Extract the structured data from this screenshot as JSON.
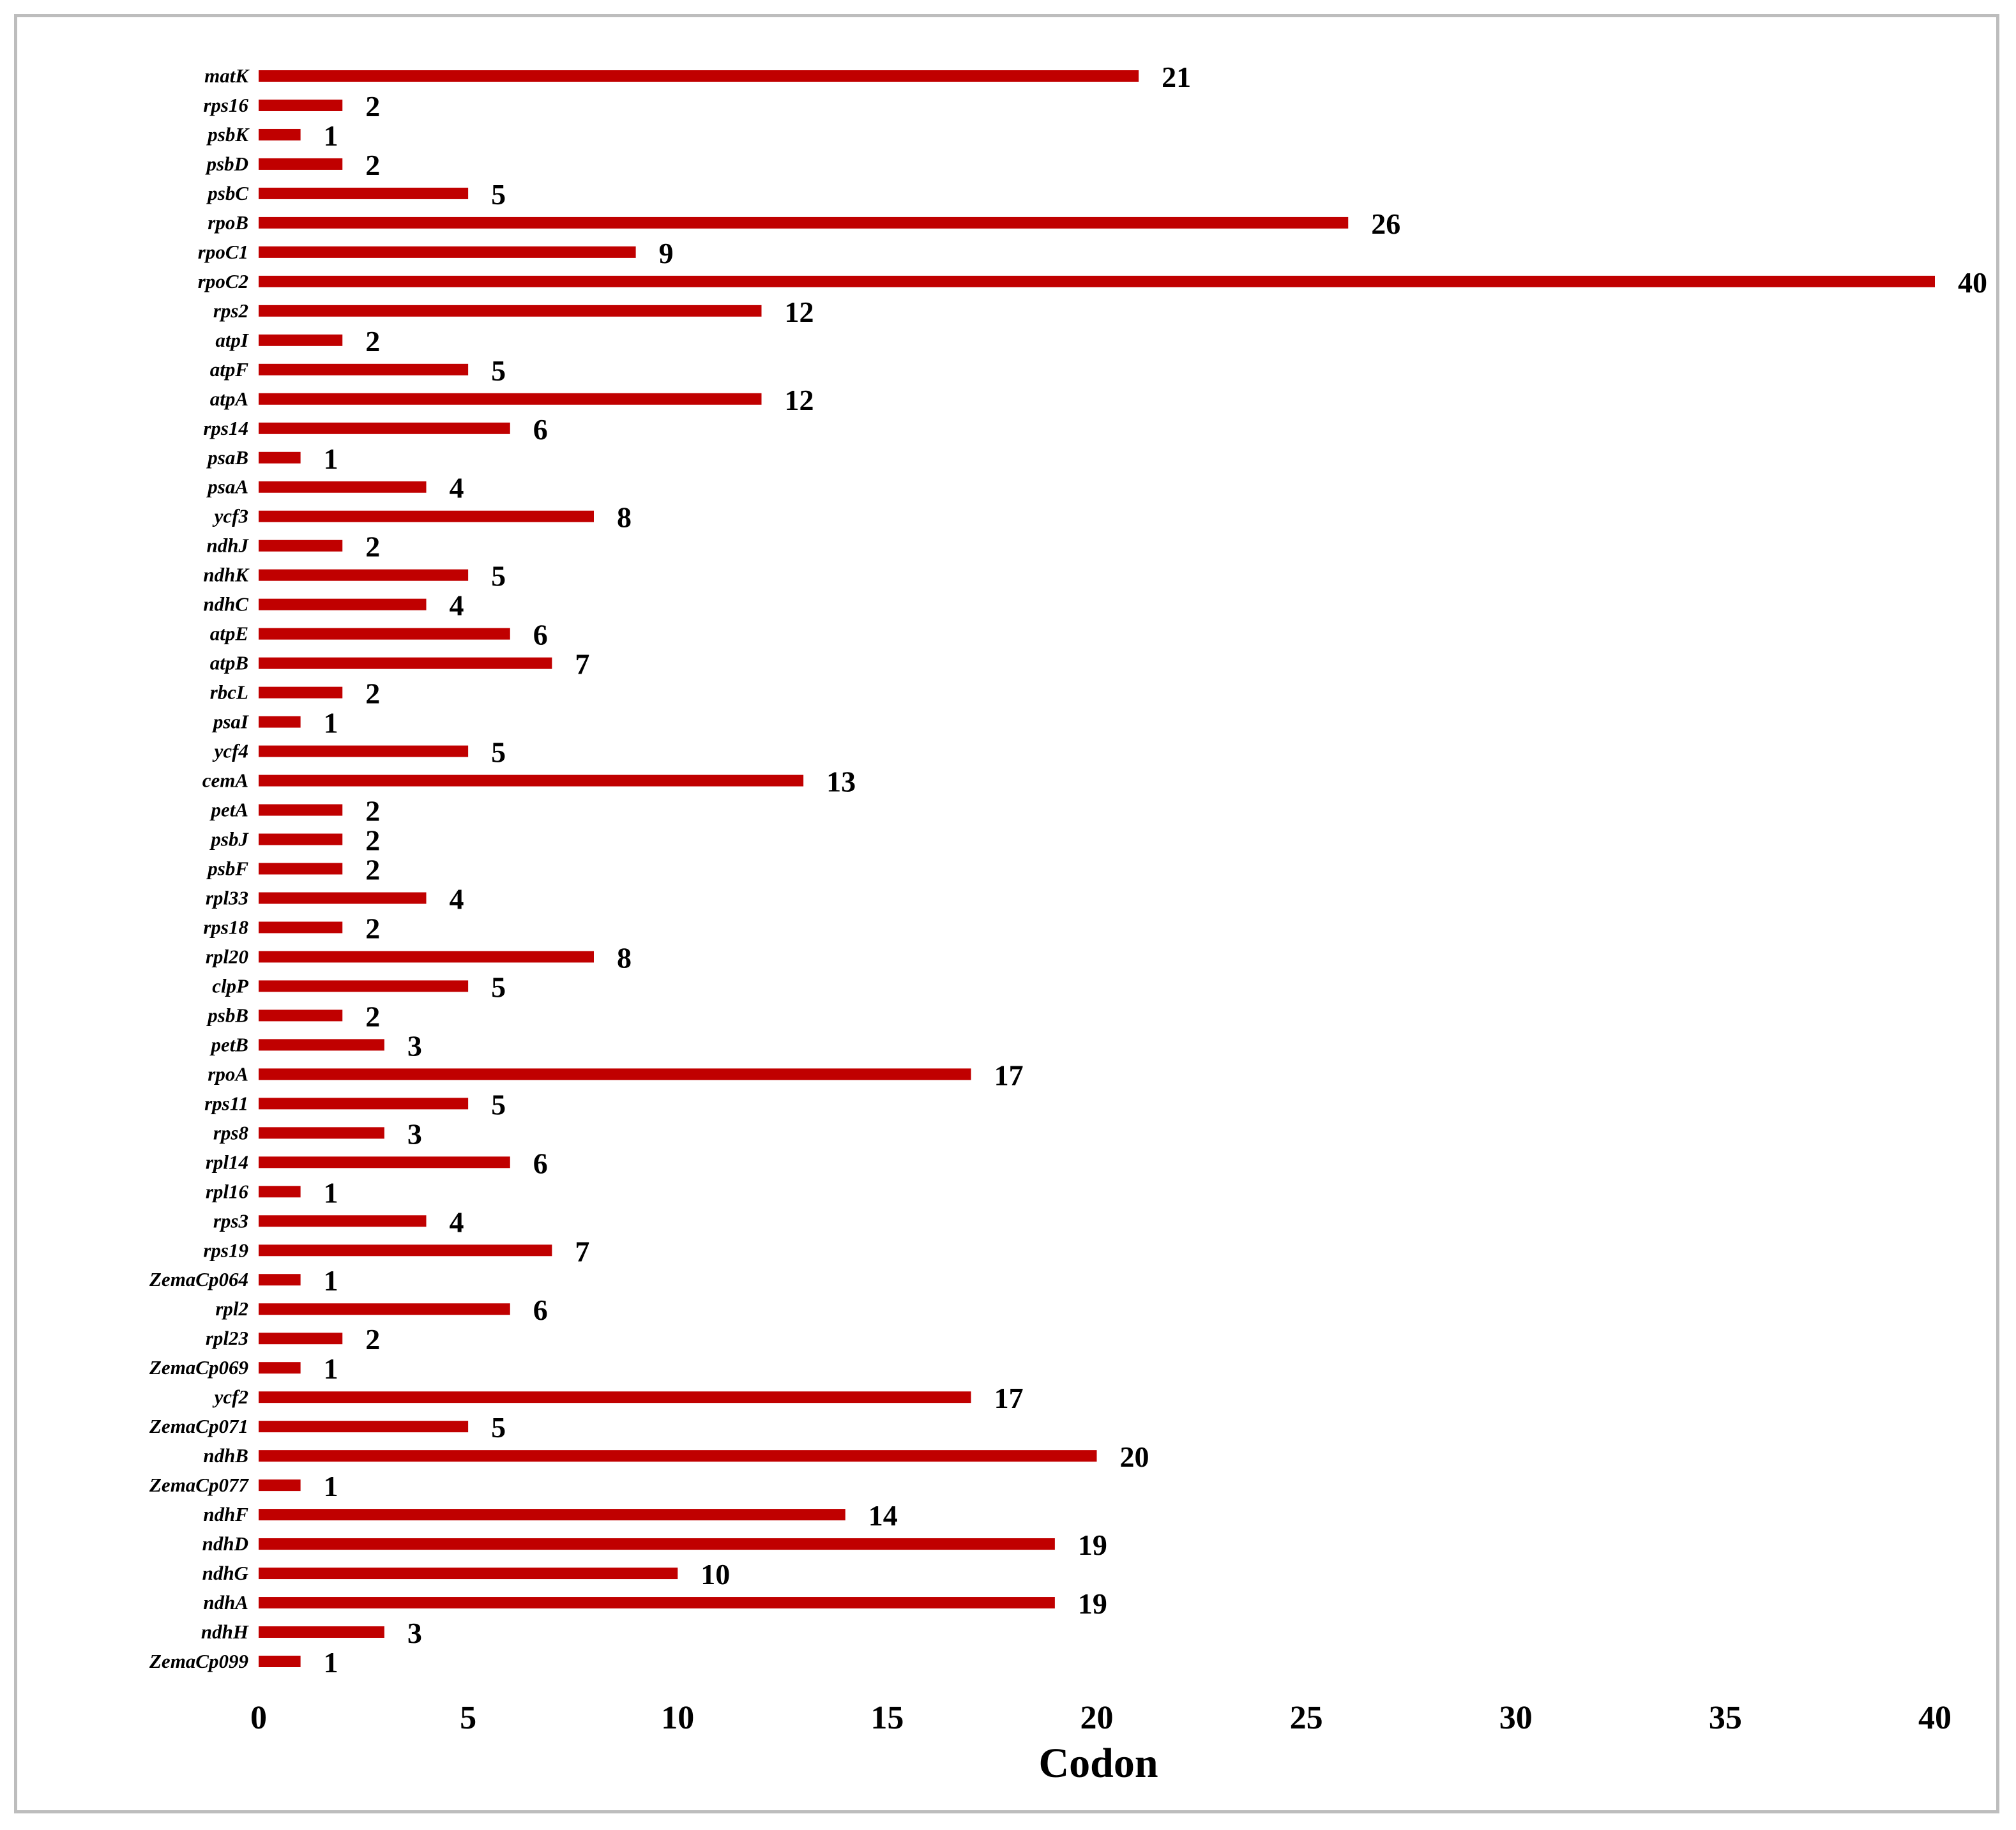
{
  "chart_data": {
    "type": "bar",
    "orientation": "horizontal",
    "categories": [
      "matK",
      "rps16",
      "psbK",
      "psbD",
      "psbC",
      "rpoB",
      "rpoC1",
      "rpoC2",
      "rps2",
      "atpI",
      "atpF",
      "atpA",
      "rps14",
      "psaB",
      "psaA",
      "ycf3",
      "ndhJ",
      "ndhK",
      "ndhC",
      "atpE",
      "atpB",
      "rbcL",
      "psaI",
      "ycf4",
      "cemA",
      "petA",
      "psbJ",
      "psbF",
      "rpl33",
      "rps18",
      "rpl20",
      "clpP",
      "psbB",
      "petB",
      "rpoA",
      "rps11",
      "rps8",
      "rpl14",
      "rpl16",
      "rps3",
      "rps19",
      "ZemaCp064",
      "rpl2",
      "rpl23",
      "ZemaCp069",
      "ycf2",
      "ZemaCp071",
      "ndhB",
      "ZemaCp077",
      "ndhF",
      "ndhD",
      "ndhG",
      "ndhA",
      "ndhH",
      "ZemaCp099"
    ],
    "values": [
      21,
      2,
      1,
      2,
      5,
      26,
      9,
      40,
      12,
      2,
      5,
      12,
      6,
      1,
      4,
      8,
      2,
      5,
      4,
      6,
      7,
      2,
      1,
      5,
      13,
      2,
      2,
      2,
      4,
      2,
      8,
      5,
      2,
      3,
      17,
      5,
      3,
      6,
      1,
      4,
      7,
      1,
      6,
      2,
      1,
      17,
      5,
      20,
      1,
      14,
      19,
      10,
      19,
      3,
      1
    ],
    "value_labels": [
      "21",
      "2",
      "1",
      "2",
      "5",
      "26",
      "9",
      "40",
      "12",
      "2",
      "5",
      "12",
      "6",
      "1",
      "4",
      "8",
      "2",
      "5",
      "4",
      "6",
      "7",
      "2",
      "1",
      "5",
      "13",
      "2",
      "2",
      "2",
      "4",
      "2",
      "8",
      "5",
      "2",
      "3",
      "17",
      "5",
      "3",
      "6",
      "1",
      "4",
      "7",
      "1",
      "6",
      "2",
      "1",
      "17",
      "5",
      "20",
      "1",
      "14",
      "19",
      "10",
      "19",
      "3",
      "1"
    ],
    "xlabel": "Codon",
    "ylabel": "",
    "title": "",
    "xlim": [
      0,
      40
    ],
    "xticks": [
      "0",
      "5",
      "10",
      "15",
      "20",
      "25",
      "30",
      "35",
      "40"
    ],
    "grid": false,
    "legend": "none",
    "bar_color": "#c00000"
  }
}
